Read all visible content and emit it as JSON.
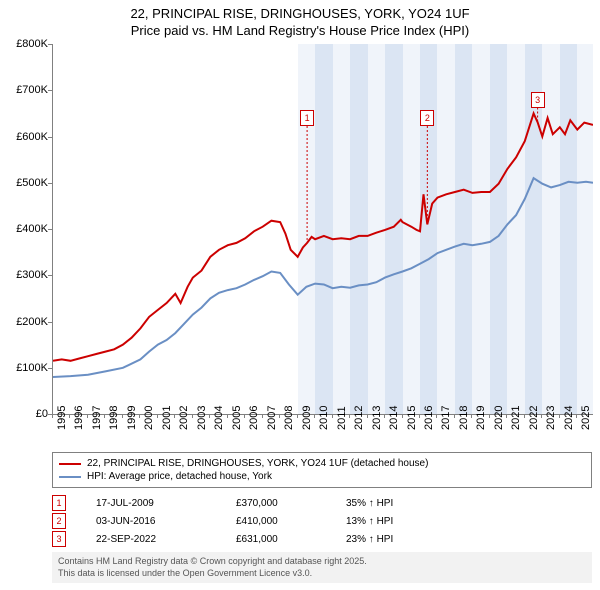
{
  "title_line1": "22, PRINCIPAL RISE, DRINGHOUSES, YORK, YO24 1UF",
  "title_line2": "Price paid vs. HM Land Registry's House Price Index (HPI)",
  "chart": {
    "type": "line",
    "ylim": [
      0,
      800
    ],
    "ytick_step": 100,
    "ytick_format_prefix": "£",
    "ytick_format_suffix": "K",
    "xlim": [
      1995,
      2025.9
    ],
    "xticks": [
      1995,
      1996,
      1997,
      1998,
      1999,
      2000,
      2001,
      2002,
      2003,
      2004,
      2005,
      2006,
      2007,
      2008,
      2009,
      2010,
      2011,
      2012,
      2013,
      2014,
      2015,
      2016,
      2017,
      2018,
      2019,
      2020,
      2021,
      2022,
      2023,
      2024,
      2025
    ],
    "background_color": "#ffffff",
    "band_color_light": "#f0f4fa",
    "band_color_dark": "#dbe5f3",
    "axis_color": "#808080",
    "series": [
      {
        "name": "price_paid",
        "color": "#cc0000",
        "width": 2,
        "points": [
          [
            1995,
            115
          ],
          [
            1995.5,
            118
          ],
          [
            1996,
            115
          ],
          [
            1996.5,
            120
          ],
          [
            1997,
            125
          ],
          [
            1997.5,
            130
          ],
          [
            1998,
            135
          ],
          [
            1998.5,
            140
          ],
          [
            1999,
            150
          ],
          [
            1999.5,
            165
          ],
          [
            2000,
            185
          ],
          [
            2000.5,
            210
          ],
          [
            2001,
            225
          ],
          [
            2001.5,
            240
          ],
          [
            2002,
            260
          ],
          [
            2002.3,
            240
          ],
          [
            2002.7,
            275
          ],
          [
            2003,
            295
          ],
          [
            2003.5,
            310
          ],
          [
            2004,
            340
          ],
          [
            2004.5,
            355
          ],
          [
            2005,
            365
          ],
          [
            2005.5,
            370
          ],
          [
            2006,
            380
          ],
          [
            2006.5,
            395
          ],
          [
            2007,
            405
          ],
          [
            2007.5,
            418
          ],
          [
            2008,
            415
          ],
          [
            2008.3,
            390
          ],
          [
            2008.6,
            355
          ],
          [
            2009,
            340
          ],
          [
            2009.3,
            360
          ],
          [
            2009.54,
            370
          ],
          [
            2009.8,
            383
          ],
          [
            2010,
            378
          ],
          [
            2010.5,
            385
          ],
          [
            2011,
            378
          ],
          [
            2011.5,
            380
          ],
          [
            2012,
            378
          ],
          [
            2012.5,
            385
          ],
          [
            2013,
            385
          ],
          [
            2013.5,
            392
          ],
          [
            2014,
            398
          ],
          [
            2014.5,
            405
          ],
          [
            2014.9,
            420
          ],
          [
            2015,
            415
          ],
          [
            2015.5,
            405
          ],
          [
            2015.8,
            398
          ],
          [
            2016,
            395
          ],
          [
            2016.2,
            475
          ],
          [
            2016.42,
            410
          ],
          [
            2016.7,
            455
          ],
          [
            2017,
            468
          ],
          [
            2017.5,
            475
          ],
          [
            2018,
            480
          ],
          [
            2018.5,
            485
          ],
          [
            2019,
            478
          ],
          [
            2019.5,
            480
          ],
          [
            2020,
            480
          ],
          [
            2020.5,
            498
          ],
          [
            2021,
            530
          ],
          [
            2021.5,
            555
          ],
          [
            2022,
            590
          ],
          [
            2022.5,
            650
          ],
          [
            2022.73,
            631
          ],
          [
            2023,
            600
          ],
          [
            2023.3,
            640
          ],
          [
            2023.6,
            605
          ],
          [
            2024,
            620
          ],
          [
            2024.3,
            605
          ],
          [
            2024.6,
            635
          ],
          [
            2025,
            615
          ],
          [
            2025.4,
            630
          ],
          [
            2025.9,
            625
          ]
        ]
      },
      {
        "name": "hpi",
        "color": "#6a8fc4",
        "width": 2,
        "points": [
          [
            1995,
            80
          ],
          [
            1996,
            82
          ],
          [
            1997,
            85
          ],
          [
            1998,
            92
          ],
          [
            1999,
            100
          ],
          [
            2000,
            118
          ],
          [
            2000.5,
            135
          ],
          [
            2001,
            150
          ],
          [
            2001.5,
            160
          ],
          [
            2002,
            175
          ],
          [
            2002.5,
            195
          ],
          [
            2003,
            215
          ],
          [
            2003.5,
            230
          ],
          [
            2004,
            250
          ],
          [
            2004.5,
            262
          ],
          [
            2005,
            268
          ],
          [
            2005.5,
            272
          ],
          [
            2006,
            280
          ],
          [
            2006.5,
            290
          ],
          [
            2007,
            298
          ],
          [
            2007.5,
            308
          ],
          [
            2008,
            305
          ],
          [
            2008.5,
            280
          ],
          [
            2009,
            258
          ],
          [
            2009.5,
            275
          ],
          [
            2010,
            282
          ],
          [
            2010.5,
            280
          ],
          [
            2011,
            272
          ],
          [
            2011.5,
            275
          ],
          [
            2012,
            273
          ],
          [
            2012.5,
            278
          ],
          [
            2013,
            280
          ],
          [
            2013.5,
            285
          ],
          [
            2014,
            295
          ],
          [
            2014.5,
            302
          ],
          [
            2015,
            308
          ],
          [
            2015.5,
            315
          ],
          [
            2016,
            325
          ],
          [
            2016.5,
            335
          ],
          [
            2017,
            348
          ],
          [
            2017.5,
            355
          ],
          [
            2018,
            362
          ],
          [
            2018.5,
            368
          ],
          [
            2019,
            365
          ],
          [
            2019.5,
            368
          ],
          [
            2020,
            372
          ],
          [
            2020.5,
            385
          ],
          [
            2021,
            410
          ],
          [
            2021.5,
            430
          ],
          [
            2022,
            465
          ],
          [
            2022.5,
            510
          ],
          [
            2023,
            498
          ],
          [
            2023.5,
            490
          ],
          [
            2024,
            495
          ],
          [
            2024.5,
            502
          ],
          [
            2025,
            500
          ],
          [
            2025.5,
            502
          ],
          [
            2025.9,
            500
          ]
        ]
      }
    ],
    "markers": [
      {
        "num": "1",
        "x": 2009.54,
        "y": 640,
        "line_to_y": 370
      },
      {
        "num": "2",
        "x": 2016.42,
        "y": 640,
        "line_to_y": 410
      },
      {
        "num": "3",
        "x": 2022.73,
        "y": 680,
        "line_to_y": 631
      }
    ]
  },
  "legend": [
    {
      "color": "#cc0000",
      "label": "22, PRINCIPAL RISE, DRINGHOUSES, YORK, YO24 1UF (detached house)"
    },
    {
      "color": "#6a8fc4",
      "label": "HPI: Average price, detached house, York"
    }
  ],
  "events": [
    {
      "num": "1",
      "date": "17-JUL-2009",
      "price": "£370,000",
      "pct": "35% ↑ HPI"
    },
    {
      "num": "2",
      "date": "03-JUN-2016",
      "price": "£410,000",
      "pct": "13% ↑ HPI"
    },
    {
      "num": "3",
      "date": "22-SEP-2022",
      "price": "£631,000",
      "pct": "23% ↑ HPI"
    }
  ],
  "footer_line1": "Contains HM Land Registry data © Crown copyright and database right 2025.",
  "footer_line2": "This data is licensed under the Open Government Licence v3.0.",
  "fonts": {
    "title_size": 13,
    "tick_size": 11,
    "legend_size": 10,
    "event_size": 10,
    "footer_size": 9
  }
}
